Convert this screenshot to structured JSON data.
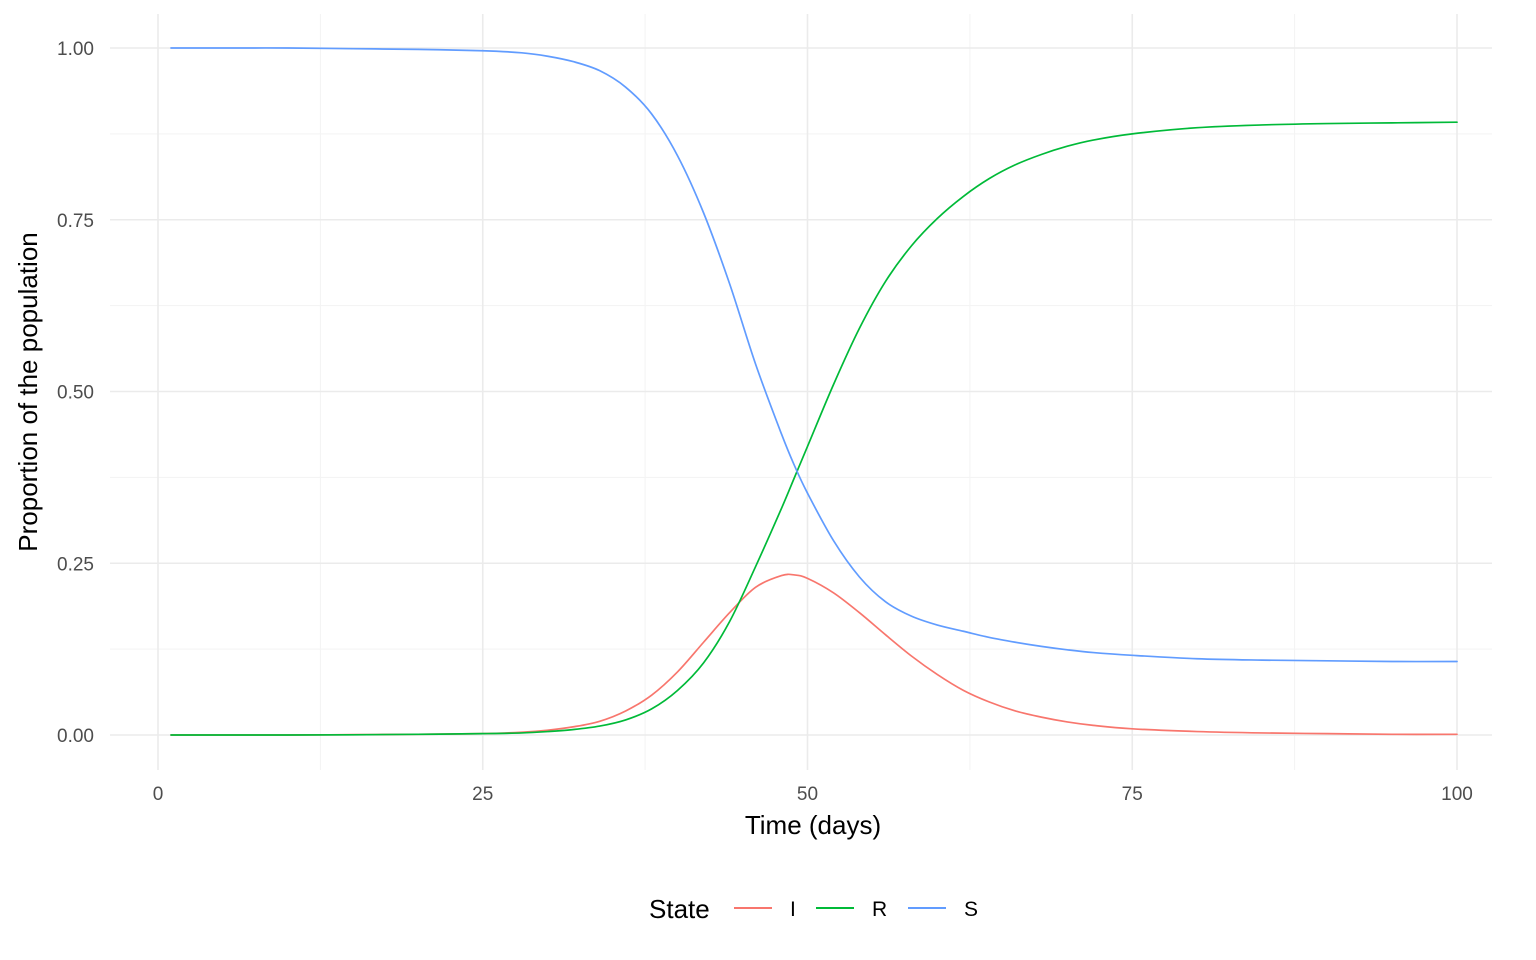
{
  "chart_data": {
    "type": "line",
    "title": "",
    "xlabel": "Time (days)",
    "ylabel": "Proportion of the population",
    "xlim": [
      0,
      100
    ],
    "ylim": [
      0,
      1
    ],
    "x_ticks": [
      "0",
      "25",
      "50",
      "75",
      "100"
    ],
    "x_tick_values": [
      0,
      25,
      50,
      75,
      100
    ],
    "y_ticks": [
      "0.00",
      "0.25",
      "0.50",
      "0.75",
      "1.00"
    ],
    "y_tick_values": [
      0,
      0.25,
      0.5,
      0.75,
      1.0
    ],
    "grid": true,
    "legend": {
      "title": "State",
      "position": "bottom"
    },
    "x": [
      1,
      5,
      10,
      15,
      20,
      25,
      28,
      30,
      32,
      34,
      36,
      38,
      40,
      42,
      44,
      46,
      48,
      49,
      50,
      52,
      54,
      56,
      58,
      60,
      62,
      64,
      66,
      68,
      70,
      72,
      75,
      80,
      85,
      90,
      95,
      100
    ],
    "series": [
      {
        "name": "I",
        "color": "#F8766D",
        "values": [
          0.0,
          0.0,
          0.0,
          0.0005,
          0.001,
          0.002,
          0.004,
          0.007,
          0.012,
          0.02,
          0.035,
          0.058,
          0.092,
          0.135,
          0.178,
          0.215,
          0.232,
          0.233,
          0.228,
          0.207,
          0.178,
          0.146,
          0.115,
          0.088,
          0.065,
          0.048,
          0.035,
          0.026,
          0.019,
          0.014,
          0.009,
          0.005,
          0.003,
          0.002,
          0.001,
          0.001
        ]
      },
      {
        "name": "R",
        "color": "#00BA38",
        "values": [
          0.0,
          0.0,
          0.0,
          0.0003,
          0.001,
          0.002,
          0.003,
          0.005,
          0.008,
          0.013,
          0.022,
          0.038,
          0.065,
          0.105,
          0.165,
          0.245,
          0.33,
          0.375,
          0.42,
          0.51,
          0.592,
          0.66,
          0.712,
          0.752,
          0.784,
          0.81,
          0.83,
          0.845,
          0.857,
          0.866,
          0.875,
          0.884,
          0.888,
          0.89,
          0.891,
          0.892
        ]
      },
      {
        "name": "S",
        "color": "#619CFF",
        "values": [
          1.0,
          1.0,
          1.0,
          0.999,
          0.998,
          0.996,
          0.993,
          0.988,
          0.98,
          0.967,
          0.943,
          0.904,
          0.843,
          0.76,
          0.657,
          0.54,
          0.438,
          0.392,
          0.352,
          0.283,
          0.23,
          0.194,
          0.173,
          0.16,
          0.151,
          0.142,
          0.135,
          0.129,
          0.124,
          0.12,
          0.116,
          0.111,
          0.109,
          0.108,
          0.107,
          0.107
        ]
      }
    ]
  }
}
